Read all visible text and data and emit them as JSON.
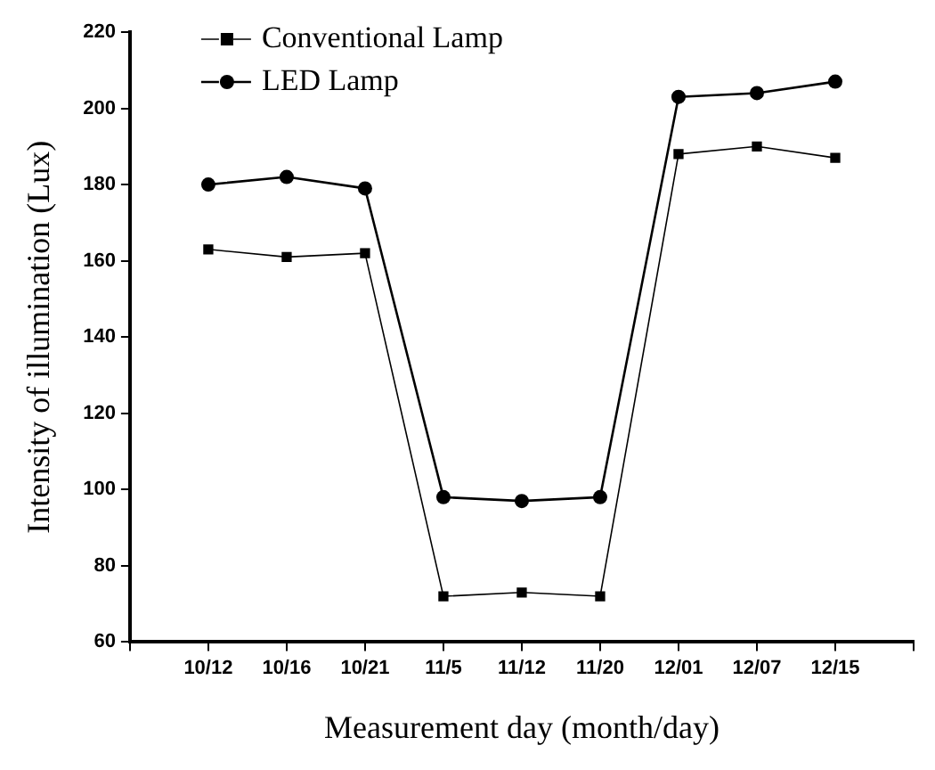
{
  "chart_data": {
    "type": "line",
    "xlabel": "Measurement day (month/day)",
    "ylabel": "Intensity of illumination (Lux)",
    "categories": [
      "10/12",
      "10/16",
      "10/21",
      "11/5",
      "11/12",
      "11/20",
      "12/01",
      "12/07",
      "12/15"
    ],
    "series": [
      {
        "name": "Conventional Lamp",
        "color": "#000000",
        "marker": "square",
        "values": [
          163,
          161,
          162,
          72,
          73,
          72,
          188,
          190,
          187
        ]
      },
      {
        "name": "LED Lamp",
        "color": "#000000",
        "marker": "circle",
        "values": [
          180,
          182,
          179,
          98,
          97,
          98,
          203,
          204,
          207
        ]
      }
    ],
    "ylim": [
      60,
      220
    ],
    "yticks": [
      60,
      80,
      100,
      120,
      140,
      160,
      180,
      200,
      220
    ],
    "grid": false,
    "legend": "top left",
    "line_style": "solid"
  }
}
